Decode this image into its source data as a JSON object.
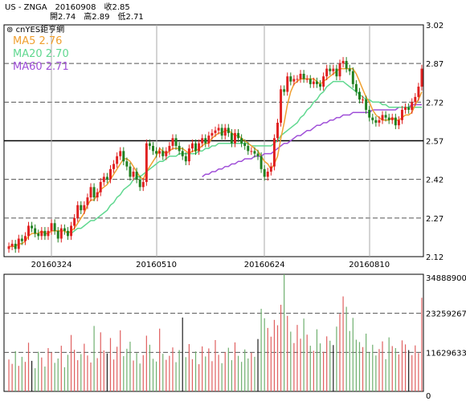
{
  "header": {
    "line1": "US - ZNGA　20160908　收2.85",
    "line2": "開2.74　高2.89　低2.71"
  },
  "watermark": "cnYES鉅亨網",
  "legend": [
    {
      "label": "MA5 2.76",
      "color": "#f0a030"
    },
    {
      "label": "MA20 2.70",
      "color": "#60d890"
    },
    {
      "label": "MA60 2.71",
      "color": "#a050d8"
    }
  ],
  "colors": {
    "up": "#e02020",
    "down": "#208020",
    "volume_up": "#e06060",
    "volume_down": "#70b070",
    "volume_dark": "#202020",
    "ma5": "#f0a030",
    "ma20": "#60d890",
    "ma60": "#a050d8"
  },
  "chart_data": [
    {
      "type": "candlestick",
      "title": "US - ZNGA",
      "x_tick_labels": [
        "20160324",
        "20160510",
        "20160624",
        "20160810"
      ],
      "y_tick_labels": [
        "3.02",
        "2.87",
        "2.72",
        "2.57",
        "2.42",
        "2.27",
        "2.12"
      ],
      "y_ticks": [
        3.02,
        2.87,
        2.72,
        2.57,
        2.42,
        2.27,
        2.12
      ],
      "ylim": [
        2.12,
        3.02
      ],
      "reference_line": 2.57,
      "dashed_gridlines": [
        2.87,
        2.72,
        2.42,
        2.27
      ],
      "last_bar": {
        "date": "20160908",
        "open": 2.74,
        "high": 2.89,
        "low": 2.71,
        "close": 2.85
      },
      "series_names": [
        "MA5",
        "MA20",
        "MA60"
      ],
      "close": [
        2.16,
        2.17,
        2.15,
        2.19,
        2.18,
        2.2,
        2.24,
        2.23,
        2.21,
        2.2,
        2.22,
        2.2,
        2.22,
        2.25,
        2.22,
        2.19,
        2.23,
        2.22,
        2.2,
        2.24,
        2.27,
        2.32,
        2.3,
        2.32,
        2.35,
        2.39,
        2.35,
        2.37,
        2.41,
        2.43,
        2.42,
        2.46,
        2.48,
        2.51,
        2.53,
        2.49,
        2.47,
        2.43,
        2.45,
        2.42,
        2.39,
        2.41,
        2.56,
        2.55,
        2.53,
        2.52,
        2.53,
        2.51,
        2.53,
        2.55,
        2.58,
        2.55,
        2.53,
        2.51,
        2.49,
        2.54,
        2.56,
        2.53,
        2.56,
        2.58,
        2.56,
        2.59,
        2.6,
        2.61,
        2.62,
        2.59,
        2.62,
        2.6,
        2.56,
        2.6,
        2.58,
        2.56,
        2.55,
        2.53,
        2.53,
        2.52,
        2.51,
        2.46,
        2.43,
        2.45,
        2.47,
        2.58,
        2.64,
        2.77,
        2.76,
        2.82,
        2.8,
        2.81,
        2.81,
        2.83,
        2.81,
        2.81,
        2.79,
        2.8,
        2.79,
        2.78,
        2.82,
        2.85,
        2.84,
        2.85,
        2.82,
        2.87,
        2.88,
        2.85,
        2.84,
        2.79,
        2.76,
        2.73,
        2.73,
        2.69,
        2.66,
        2.65,
        2.64,
        2.65,
        2.67,
        2.66,
        2.65,
        2.66,
        2.63,
        2.65,
        2.69,
        2.7,
        2.69,
        2.72,
        2.74,
        2.78,
        2.85
      ],
      "ma5": [
        2.16,
        2.16,
        2.16,
        2.17,
        2.17,
        2.18,
        2.2,
        2.21,
        2.21,
        2.21,
        2.22,
        2.21,
        2.21,
        2.22,
        2.22,
        2.22,
        2.22,
        2.22,
        2.21,
        2.22,
        2.23,
        2.25,
        2.27,
        2.29,
        2.32,
        2.34,
        2.34,
        2.36,
        2.38,
        2.39,
        2.4,
        2.42,
        2.44,
        2.46,
        2.48,
        2.5,
        2.5,
        2.49,
        2.47,
        2.45,
        2.43,
        2.42,
        2.45,
        2.47,
        2.49,
        2.51,
        2.54,
        2.53,
        2.52,
        2.53,
        2.54,
        2.54,
        2.54,
        2.54,
        2.53,
        2.52,
        2.53,
        2.53,
        2.54,
        2.55,
        2.56,
        2.56,
        2.58,
        2.59,
        2.6,
        2.6,
        2.61,
        2.61,
        2.6,
        2.59,
        2.59,
        2.58,
        2.57,
        2.56,
        2.55,
        2.54,
        2.53,
        2.51,
        2.49,
        2.48,
        2.46,
        2.48,
        2.51,
        2.58,
        2.64,
        2.71,
        2.76,
        2.79,
        2.8,
        2.81,
        2.81,
        2.81,
        2.81,
        2.81,
        2.8,
        2.79,
        2.8,
        2.81,
        2.82,
        2.83,
        2.84,
        2.85,
        2.85,
        2.85,
        2.85,
        2.85,
        2.83,
        2.8,
        2.77,
        2.74,
        2.72,
        2.69,
        2.67,
        2.66,
        2.65,
        2.65,
        2.65,
        2.66,
        2.65,
        2.65,
        2.66,
        2.67,
        2.67,
        2.68,
        2.71,
        2.73,
        2.76
      ],
      "ma20_start": 19,
      "ma20": [
        2.21,
        2.22,
        2.23,
        2.23,
        2.24,
        2.25,
        2.26,
        2.26,
        2.27,
        2.28,
        2.29,
        2.3,
        2.32,
        2.33,
        2.35,
        2.36,
        2.38,
        2.39,
        2.4,
        2.42,
        2.43,
        2.43,
        2.44,
        2.45,
        2.46,
        2.47,
        2.48,
        2.49,
        2.49,
        2.5,
        2.51,
        2.51,
        2.51,
        2.52,
        2.52,
        2.52,
        2.52,
        2.52,
        2.52,
        2.53,
        2.53,
        2.54,
        2.54,
        2.55,
        2.55,
        2.56,
        2.56,
        2.56,
        2.56,
        2.56,
        2.56,
        2.56,
        2.56,
        2.56,
        2.56,
        2.55,
        2.55,
        2.55,
        2.55,
        2.55,
        2.55,
        2.55,
        2.56,
        2.57,
        2.59,
        2.6,
        2.61,
        2.62,
        2.63,
        2.64,
        2.66,
        2.67,
        2.69,
        2.7,
        2.72,
        2.73,
        2.75,
        2.76,
        2.78,
        2.79,
        2.8,
        2.8,
        2.8,
        2.8,
        2.79,
        2.78,
        2.77,
        2.76,
        2.75,
        2.74,
        2.73,
        2.73,
        2.72,
        2.72,
        2.72,
        2.71,
        2.71,
        2.7,
        2.7,
        2.7,
        2.7,
        2.7,
        2.7,
        2.7,
        2.7,
        2.7,
        2.7,
        2.7
      ],
      "ma60_start": 59,
      "ma60": [
        2.43,
        2.44,
        2.44,
        2.45,
        2.45,
        2.46,
        2.46,
        2.47,
        2.47,
        2.48,
        2.48,
        2.49,
        2.49,
        2.5,
        2.5,
        2.5,
        2.51,
        2.51,
        2.51,
        2.52,
        2.52,
        2.52,
        2.53,
        2.54,
        2.55,
        2.56,
        2.56,
        2.57,
        2.58,
        2.59,
        2.59,
        2.6,
        2.61,
        2.61,
        2.62,
        2.63,
        2.63,
        2.64,
        2.64,
        2.65,
        2.65,
        2.66,
        2.66,
        2.67,
        2.67,
        2.67,
        2.68,
        2.68,
        2.68,
        2.68,
        2.68,
        2.68,
        2.69,
        2.69,
        2.69,
        2.69,
        2.69,
        2.69,
        2.69,
        2.69,
        2.7,
        2.7,
        2.7,
        2.7,
        2.71,
        2.71,
        2.71,
        2.71
      ]
    },
    {
      "type": "bar",
      "title": "",
      "y_tick_labels": [
        "34888900",
        "23259267",
        "11629633",
        "0"
      ],
      "y_ticks": [
        34888900,
        23259267,
        11629633,
        0
      ],
      "ylim": [
        0,
        34888900
      ],
      "values": [
        9500000,
        8200000,
        12000000,
        7600000,
        10300000,
        8800000,
        14500000,
        9100000,
        6900000,
        11800000,
        10100000,
        7400000,
        12900000,
        11600000,
        8500000,
        9800000,
        13600000,
        7200000,
        10900000,
        16800000,
        12400000,
        9300000,
        11100000,
        14200000,
        10700000,
        8600000,
        19500000,
        9900000,
        17600000,
        12200000,
        11300000,
        15900000,
        9500000,
        13300000,
        18200000,
        10500000,
        12700000,
        14800000,
        9200000,
        11400000,
        8300000,
        10800000,
        16600000,
        13900000,
        9700000,
        8900000,
        18700000,
        11200000,
        9400000,
        10600000,
        13100000,
        8700000,
        12300000,
        22000000,
        10200000,
        14100000,
        9600000,
        11900000,
        8100000,
        13400000,
        10400000,
        12800000,
        9000000,
        15300000,
        10900000,
        8400000,
        11700000,
        13000000,
        9300000,
        14600000,
        10600000,
        8800000,
        12500000,
        9800000,
        11500000,
        10300000,
        15600000,
        24600000,
        21800000,
        18900000,
        16300000,
        21300000,
        19700000,
        25800000,
        34888900,
        22500000,
        17800000,
        14400000,
        19800000,
        15700000,
        21700000,
        16900000,
        13600000,
        12100000,
        18500000,
        14300000,
        11800000,
        16400000,
        15100000,
        13800000,
        19300000,
        23100000,
        28300000,
        25200000,
        18000000,
        21900000,
        15400000,
        14700000,
        13200000,
        17200000,
        11600000,
        13900000,
        10700000,
        12600000,
        14900000,
        9600000,
        16100000,
        13500000,
        12900000,
        11000000,
        15200000,
        14000000,
        12300000,
        10800000,
        13700000,
        11400000,
        27900000
      ]
    }
  ]
}
